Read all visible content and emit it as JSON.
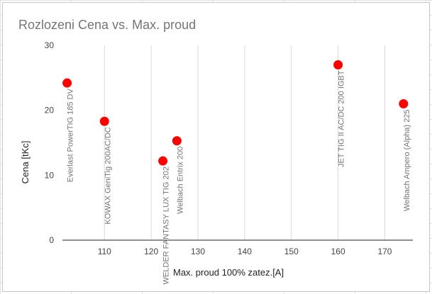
{
  "chart_data": {
    "type": "scatter",
    "title": "Rozlozeni Cena vs. Max. proud",
    "xlabel": "Max. proud  100% zatez.[A]",
    "ylabel": "Cena [tKc]",
    "xlim": [
      101,
      176
    ],
    "ylim": [
      0,
      30
    ],
    "xticks": [
      110,
      120,
      130,
      140,
      150,
      160,
      170
    ],
    "yticks": [
      0,
      10,
      20,
      30
    ],
    "grid": "vertical",
    "legend": "none",
    "marker_color": "#ff0000",
    "points": [
      {
        "x": 102,
        "y": 24.2,
        "label": "Everlast PowerTIG 185 DV"
      },
      {
        "x": 110,
        "y": 18.3,
        "label": "KOWAX GeniTig 200AC/DC"
      },
      {
        "x": 122.5,
        "y": 12.2,
        "label": "WELDER FANTASY LUX TIG 202"
      },
      {
        "x": 125.5,
        "y": 15.3,
        "label": "Welbach Entrix 200"
      },
      {
        "x": 160,
        "y": 27,
        "label": "JET TIG II AC/DC 200 IGBT"
      },
      {
        "x": 174,
        "y": 21,
        "label": "Welbach Ampero (Alpha) 225"
      }
    ]
  }
}
